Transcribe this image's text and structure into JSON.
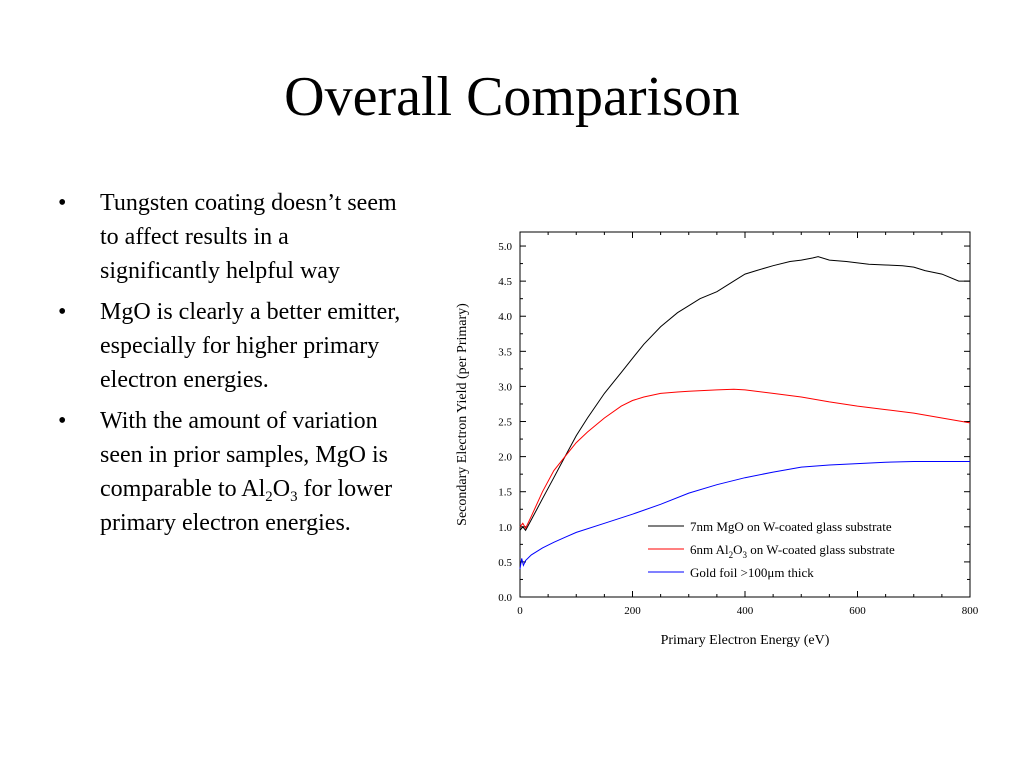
{
  "slide": {
    "title": "Overall Comparison",
    "bullets": [
      {
        "parts": [
          {
            "text": "Tungsten coating doesn’t seem to affect results in a significantly helpful way"
          }
        ]
      },
      {
        "parts": [
          {
            "text": "MgO is clearly a better emitter, especially for higher primary electron energies."
          }
        ]
      },
      {
        "parts": [
          {
            "text": "With the amount of variation seen in prior samples, MgO is comparable to Al"
          },
          {
            "sub": "2"
          },
          {
            "text": "O"
          },
          {
            "sub": "3"
          },
          {
            "text": " for lower primary electron energies."
          }
        ]
      }
    ]
  },
  "chart_data": {
    "type": "line",
    "xlabel": "Primary Electron Energy (eV)",
    "ylabel": "Secondary Electron Yield (per Primary)",
    "xlim": [
      0,
      800
    ],
    "ylim": [
      0,
      5.2
    ],
    "xticks": [
      0,
      200,
      400,
      600,
      800
    ],
    "yticks": [
      "0.0",
      "0.5",
      "1.0",
      "1.5",
      "2.0",
      "2.5",
      "3.0",
      "3.5",
      "4.0",
      "4.5",
      "5.0"
    ],
    "grid": false,
    "legend_position": "bottom-right",
    "series": [
      {
        "name": "7nm MgO on W-coated glass substrate",
        "name_parts": [
          {
            "text": "7nm MgO on W-coated glass substrate"
          }
        ],
        "color": "#000000",
        "x": [
          0,
          5,
          10,
          20,
          40,
          60,
          80,
          100,
          120,
          150,
          180,
          200,
          220,
          250,
          280,
          300,
          320,
          350,
          380,
          400,
          420,
          450,
          480,
          500,
          520,
          530,
          550,
          580,
          600,
          620,
          650,
          680,
          700,
          720,
          750,
          780,
          800
        ],
        "y": [
          0.95,
          1.0,
          0.95,
          1.1,
          1.4,
          1.7,
          2.0,
          2.3,
          2.55,
          2.9,
          3.2,
          3.4,
          3.6,
          3.85,
          4.05,
          4.15,
          4.25,
          4.35,
          4.5,
          4.6,
          4.65,
          4.72,
          4.78,
          4.8,
          4.83,
          4.85,
          4.8,
          4.78,
          4.76,
          4.74,
          4.73,
          4.72,
          4.7,
          4.65,
          4.6,
          4.5,
          4.5
        ]
      },
      {
        "name": "6nm Al2O3 on W-coated glass substrate",
        "name_parts": [
          {
            "text": "6nm Al"
          },
          {
            "sub": "2"
          },
          {
            "text": "O"
          },
          {
            "sub": "3"
          },
          {
            "text": " on W-coated glass substrate"
          }
        ],
        "color": "#ff0000",
        "x": [
          0,
          5,
          10,
          20,
          40,
          60,
          80,
          100,
          120,
          150,
          180,
          200,
          220,
          250,
          280,
          300,
          350,
          380,
          400,
          450,
          500,
          550,
          600,
          650,
          700,
          750,
          800
        ],
        "y": [
          1.0,
          1.05,
          0.98,
          1.15,
          1.5,
          1.8,
          2.0,
          2.2,
          2.35,
          2.55,
          2.72,
          2.8,
          2.85,
          2.9,
          2.92,
          2.93,
          2.95,
          2.96,
          2.95,
          2.9,
          2.85,
          2.78,
          2.72,
          2.67,
          2.62,
          2.55,
          2.48
        ]
      },
      {
        "name": "Gold foil >100μm thick",
        "name_parts": [
          {
            "text": "Gold foil >100μm thick"
          }
        ],
        "color": "#0000ff",
        "x": [
          0,
          3,
          6,
          10,
          20,
          40,
          60,
          80,
          100,
          150,
          200,
          250,
          300,
          350,
          400,
          450,
          500,
          550,
          600,
          650,
          700,
          750,
          800
        ],
        "y": [
          0.4,
          0.55,
          0.45,
          0.52,
          0.6,
          0.7,
          0.78,
          0.85,
          0.92,
          1.05,
          1.18,
          1.32,
          1.48,
          1.6,
          1.7,
          1.78,
          1.85,
          1.88,
          1.9,
          1.92,
          1.93,
          1.93,
          1.93
        ]
      }
    ]
  }
}
